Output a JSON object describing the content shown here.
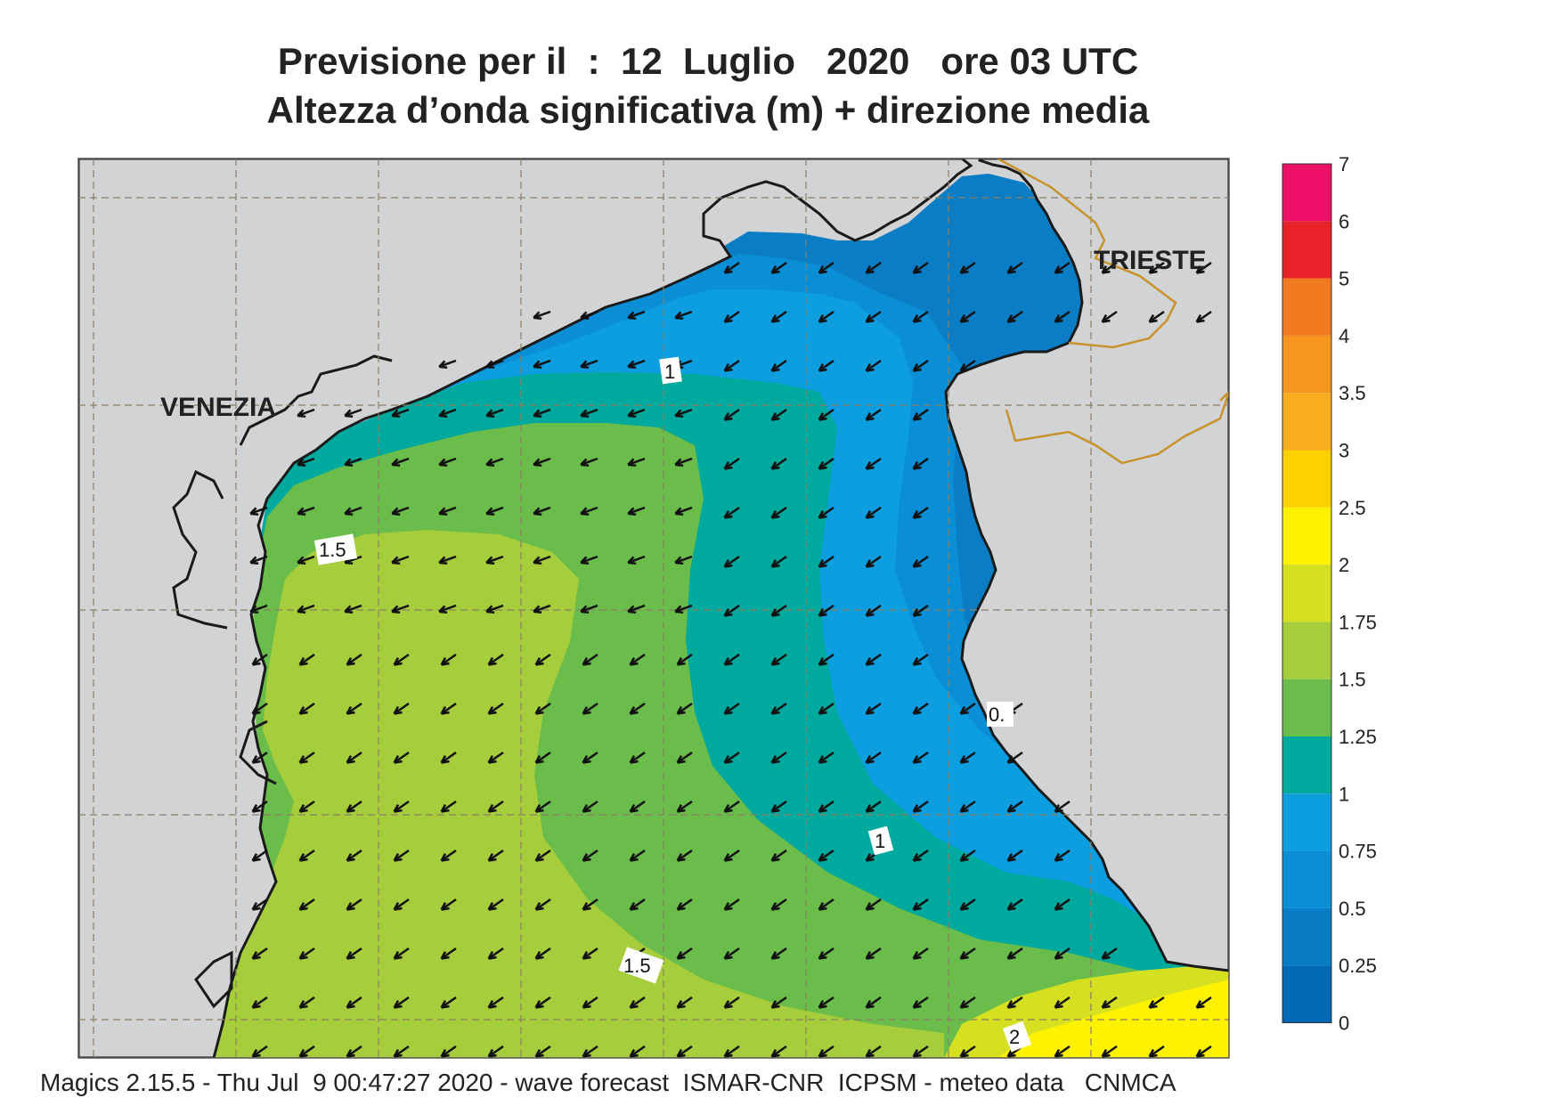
{
  "title": {
    "line1": "Previsione per il  :  12  Luglio   2020   ore 03 UTC",
    "line2": "Altezza d’onda significativa (m) + direzione media"
  },
  "cities": {
    "venezia": "VENEZIA",
    "trieste": "TRIESTE"
  },
  "contour_labels": [
    "1",
    "1.5",
    "0.",
    "1",
    "1.5",
    "2"
  ],
  "legend": {
    "ticks": [
      "7",
      "6",
      "5",
      "4",
      "3.5",
      "3",
      "2.5",
      "2",
      "1.75",
      "1.5",
      "1.25",
      "1",
      "0.75",
      "0.5",
      "0.25",
      "0"
    ],
    "colors": [
      "#f0106a",
      "#e92128",
      "#f47a22",
      "#f7951e",
      "#f7ad1d",
      "#fdd100",
      "#fff200",
      "#d5e020",
      "#a6cd3b",
      "#6abd4b",
      "#00a99d",
      "#0d9ee0",
      "#0a8fd6",
      "#097cc6",
      "#0068b5"
    ]
  },
  "footer": "Magics 2.15.5 - Thu Jul  9 00:47:27 2020 - wave forecast  ISMAR-CNR  ICPSM - meteo data   CNMCA",
  "colors": {
    "land": "#d2d3d5",
    "grid": "#8c7e62",
    "border": "#c8922c",
    "coast": "#1a1a1a"
  },
  "wave_direction": "toward south-west"
}
